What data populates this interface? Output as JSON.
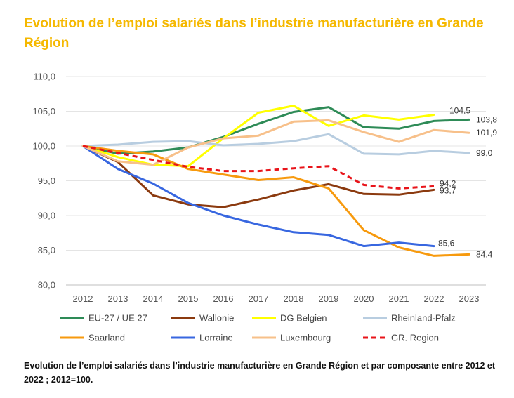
{
  "title": "Evolution de l’emploi salariés dans l’industrie manufacturière en Grande Région",
  "caption": "Evolution de l’emploi salariés dans l’industrie manufacturière en Grande Région et par composante entre 2012 et 2022 ; 2012=100.",
  "chart_data": {
    "type": "line",
    "title": "Evolution de l’emploi salariés dans l’industrie manufacturière en Grande Région",
    "xlabel": "",
    "ylabel": "",
    "ylim": [
      80,
      110
    ],
    "yticks": [
      "80,0",
      "85,0",
      "90,0",
      "95,0",
      "100,0",
      "105,0",
      "110,0"
    ],
    "ytick_values": [
      80,
      85,
      90,
      95,
      100,
      105,
      110
    ],
    "x": [
      "2012",
      "2013",
      "2014",
      "2015",
      "2016",
      "2017",
      "2018",
      "2019",
      "2020",
      "2021",
      "2022",
      "2023"
    ],
    "grid": true,
    "legend_position": "bottom",
    "series": [
      {
        "name": "EU-27 / UE 27",
        "color": "#2e8b57",
        "dash": "solid",
        "values": [
          100.0,
          98.9,
          99.2,
          99.8,
          101.3,
          103.2,
          104.9,
          105.6,
          102.7,
          102.5,
          103.6,
          103.8
        ],
        "end_label": "103,8"
      },
      {
        "name": "Wallonie",
        "color": "#8b3a0f",
        "dash": "solid",
        "values": [
          100.0,
          97.7,
          92.9,
          91.6,
          91.2,
          92.3,
          93.6,
          94.5,
          93.1,
          93.0,
          93.7,
          null
        ],
        "end_label": "93,7"
      },
      {
        "name": "DG Belgien",
        "color": "#ffff00",
        "dash": "solid",
        "values": [
          100.0,
          98.4,
          97.3,
          97.1,
          101.1,
          104.8,
          105.8,
          102.9,
          104.4,
          103.8,
          104.5,
          null
        ],
        "end_label": "104,5"
      },
      {
        "name": "Rheinland-Pfalz",
        "color": "#b8cde0",
        "dash": "solid",
        "values": [
          100.0,
          100.2,
          100.6,
          100.7,
          100.1,
          100.3,
          100.7,
          101.7,
          98.9,
          98.8,
          99.3,
          99.0
        ],
        "end_label": "99,0"
      },
      {
        "name": "Saarland",
        "color": "#f79a0e",
        "dash": "solid",
        "values": [
          100.0,
          99.3,
          98.8,
          96.7,
          95.9,
          95.1,
          95.5,
          93.9,
          87.9,
          85.4,
          84.2,
          84.4
        ],
        "end_label": "84,4"
      },
      {
        "name": "Lorraine",
        "color": "#3867e0",
        "dash": "solid",
        "values": [
          100.0,
          96.7,
          94.6,
          91.8,
          90.0,
          88.7,
          87.6,
          87.2,
          85.6,
          86.1,
          85.6,
          null
        ],
        "end_label": "85,6"
      },
      {
        "name": "Luxembourg",
        "color": "#f7c08a",
        "dash": "solid",
        "values": [
          100.0,
          97.8,
          97.3,
          99.8,
          101.1,
          101.5,
          103.5,
          103.7,
          102.0,
          100.6,
          102.3,
          101.9
        ],
        "end_label": "101,9"
      },
      {
        "name": "GR. Region",
        "color": "#e8141a",
        "dash": "dashed",
        "values": [
          100.0,
          99.0,
          98.0,
          97.0,
          96.4,
          96.4,
          96.8,
          97.1,
          94.4,
          93.9,
          94.2,
          null
        ],
        "end_label": "94,2"
      }
    ]
  }
}
